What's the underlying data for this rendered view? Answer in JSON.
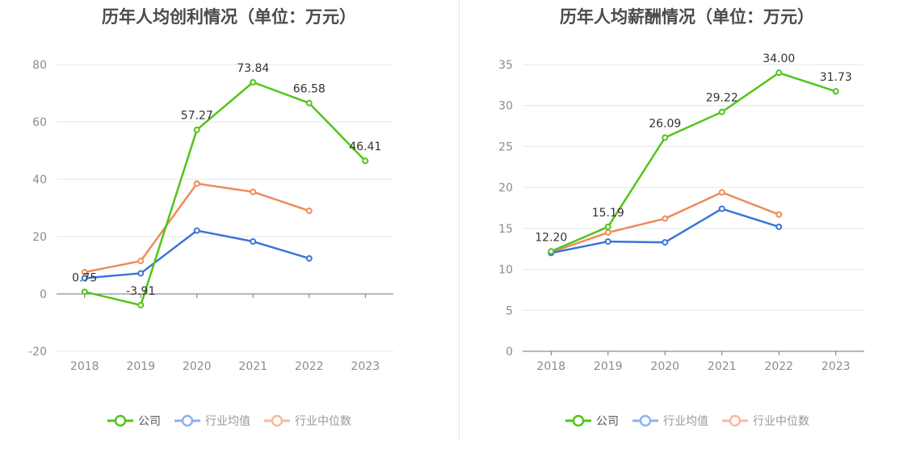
{
  "colors": {
    "company": "#52c41a",
    "industry_avg": "#3a74d9",
    "industry_median": "#f08a5a",
    "legend_avg": "#8fb1f0",
    "legend_median": "#f8b9a0"
  },
  "chart_data": [
    {
      "type": "line",
      "title": "历年人均创利情况（单位：万元）",
      "categories": [
        "2018",
        "2019",
        "2020",
        "2021",
        "2022",
        "2023"
      ],
      "ylim": [
        -20,
        80
      ],
      "yticks": [
        "80",
        "60",
        "40",
        "20",
        "0",
        "-20"
      ],
      "series": [
        {
          "name": "公司",
          "values": [
            0.75,
            -3.91,
            57.27,
            73.84,
            66.58,
            46.41
          ],
          "labels": [
            "0.75",
            "-3.91",
            "57.27",
            "73.84",
            "66.58",
            "46.41"
          ]
        },
        {
          "name": "行业均值",
          "values": [
            5.5,
            7.2,
            22.1,
            18.3,
            12.4,
            null
          ]
        },
        {
          "name": "行业中位数",
          "values": [
            7.6,
            11.5,
            38.5,
            35.6,
            29.0,
            null
          ]
        }
      ]
    },
    {
      "type": "line",
      "title": "历年人均薪酬情况（单位：万元）",
      "categories": [
        "2018",
        "2019",
        "2020",
        "2021",
        "2022",
        "2023"
      ],
      "ylim": [
        0,
        35
      ],
      "yticks": [
        "35",
        "30",
        "25",
        "20",
        "15",
        "10",
        "5",
        "0"
      ],
      "series": [
        {
          "name": "公司",
          "values": [
            12.2,
            15.19,
            26.09,
            29.22,
            34.0,
            31.73
          ],
          "labels": [
            "12.20",
            "15.19",
            "26.09",
            "29.22",
            "34.00",
            "31.73"
          ]
        },
        {
          "name": "行业均值",
          "values": [
            12.0,
            13.4,
            13.3,
            17.4,
            15.2,
            null
          ]
        },
        {
          "name": "行业中位数",
          "values": [
            12.1,
            14.5,
            16.2,
            19.4,
            16.7,
            null
          ]
        }
      ]
    }
  ],
  "legend": {
    "company": "公司",
    "avg": "行业均值",
    "median": "行业中位数"
  }
}
